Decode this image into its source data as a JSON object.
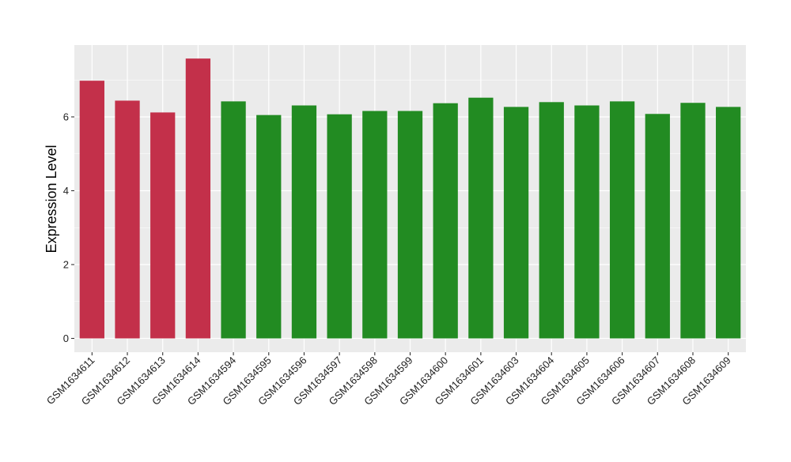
{
  "chart_data": {
    "type": "bar",
    "title": "",
    "xlabel": "",
    "ylabel": "Expression Level",
    "ylim": [
      0,
      7.95
    ],
    "yticks": [
      0,
      2,
      4,
      6
    ],
    "grid": true,
    "legend": "none",
    "categories": [
      "GSM1634611",
      "GSM1634612",
      "GSM1634613",
      "GSM1634614",
      "GSM1634594",
      "GSM1634595",
      "GSM1634596",
      "GSM1634597",
      "GSM1634598",
      "GSM1634599",
      "GSM1634600",
      "GSM1634601",
      "GSM1634603",
      "GSM1634604",
      "GSM1634605",
      "GSM1634606",
      "GSM1634607",
      "GSM1634608",
      "GSM1634609"
    ],
    "values": [
      6.98,
      6.44,
      6.12,
      7.58,
      6.42,
      6.05,
      6.31,
      6.07,
      6.16,
      6.16,
      6.37,
      6.52,
      6.27,
      6.4,
      6.31,
      6.42,
      6.08,
      6.38,
      6.27
    ],
    "bar_colors": [
      "#C3304A",
      "#C3304A",
      "#C3304A",
      "#C3304A",
      "#228B22",
      "#228B22",
      "#228B22",
      "#228B22",
      "#228B22",
      "#228B22",
      "#228B22",
      "#228B22",
      "#228B22",
      "#228B22",
      "#228B22",
      "#228B22",
      "#228B22",
      "#228B22",
      "#228B22"
    ],
    "panel_color": "#EBEBEB",
    "grid_color": "#FFFFFF"
  }
}
